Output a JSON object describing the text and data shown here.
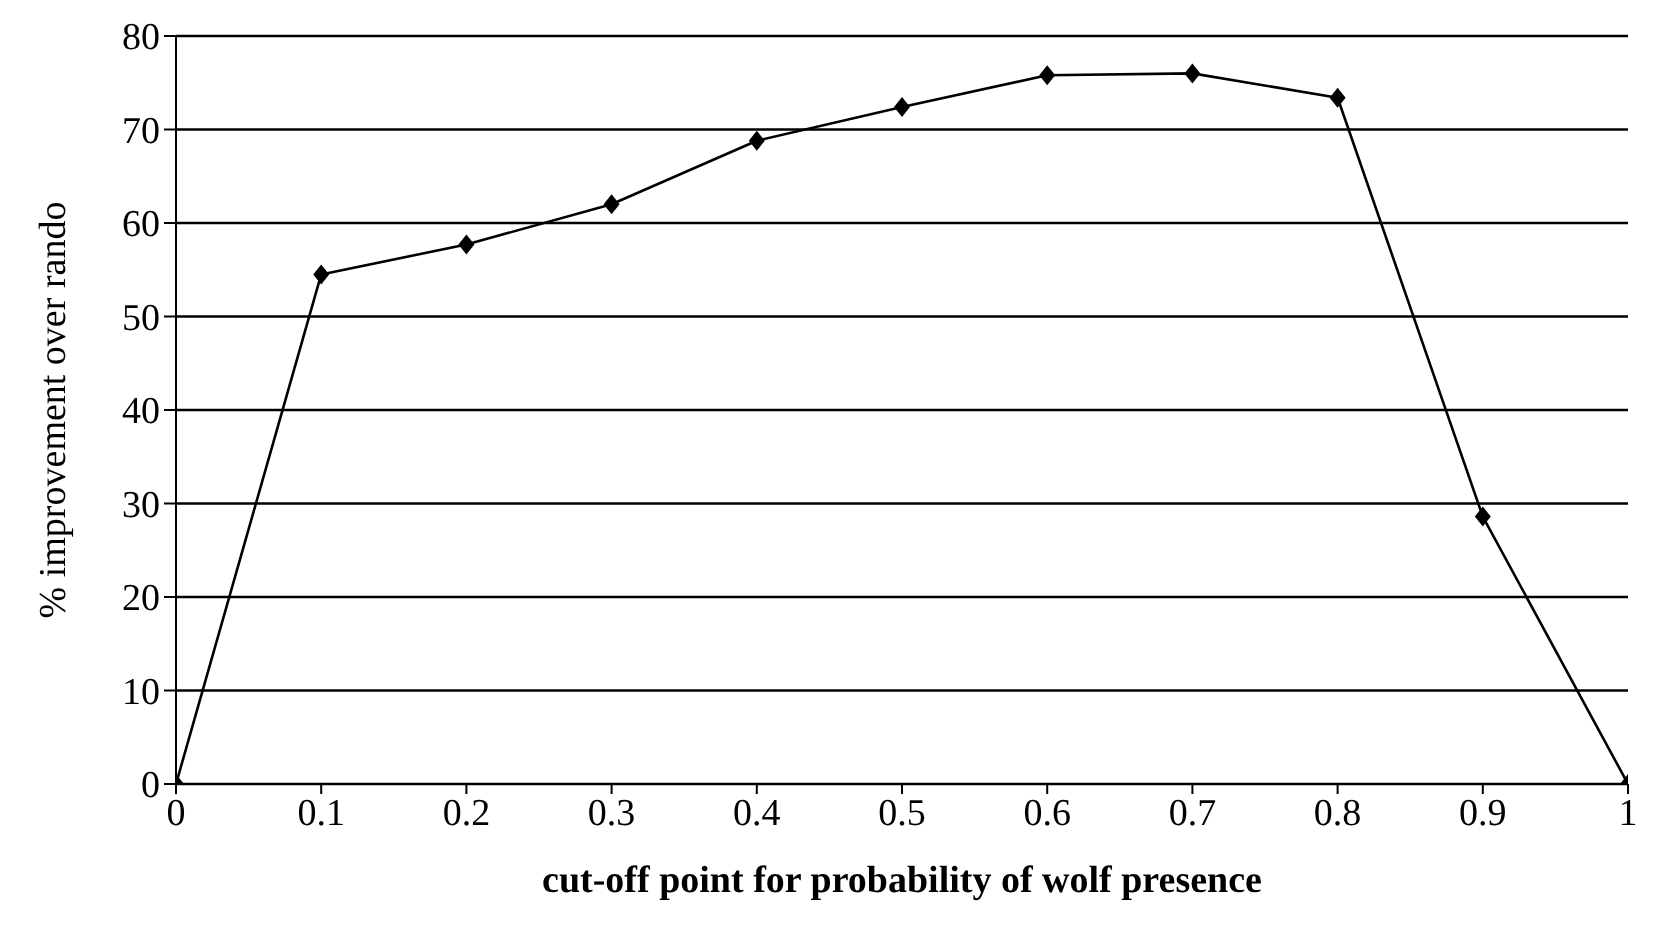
{
  "chart_data": {
    "type": "line",
    "xlabel": "cut-off point for probability of wolf presence",
    "ylabel": "% improvement over rando",
    "x": [
      0,
      0.1,
      0.2,
      0.3,
      0.4,
      0.5,
      0.6,
      0.7,
      0.8,
      0.9,
      1
    ],
    "series": [
      {
        "color": "#000000",
        "values": [
          0,
          54.5,
          57.7,
          62,
          68.8,
          72.4,
          75.8,
          76,
          73.4,
          28.6,
          0
        ]
      }
    ],
    "xlim": [
      0,
      1
    ],
    "xticks": [
      0,
      0.1,
      0.2,
      0.3,
      0.4,
      0.5,
      0.6,
      0.7,
      0.8,
      0.9,
      1
    ],
    "ylim": [
      0,
      80
    ],
    "yticks": [
      0,
      10,
      20,
      30,
      40,
      50,
      60,
      70,
      80
    ],
    "grid": "y",
    "marker": "diamond",
    "line_style": "solid",
    "legend": false
  }
}
